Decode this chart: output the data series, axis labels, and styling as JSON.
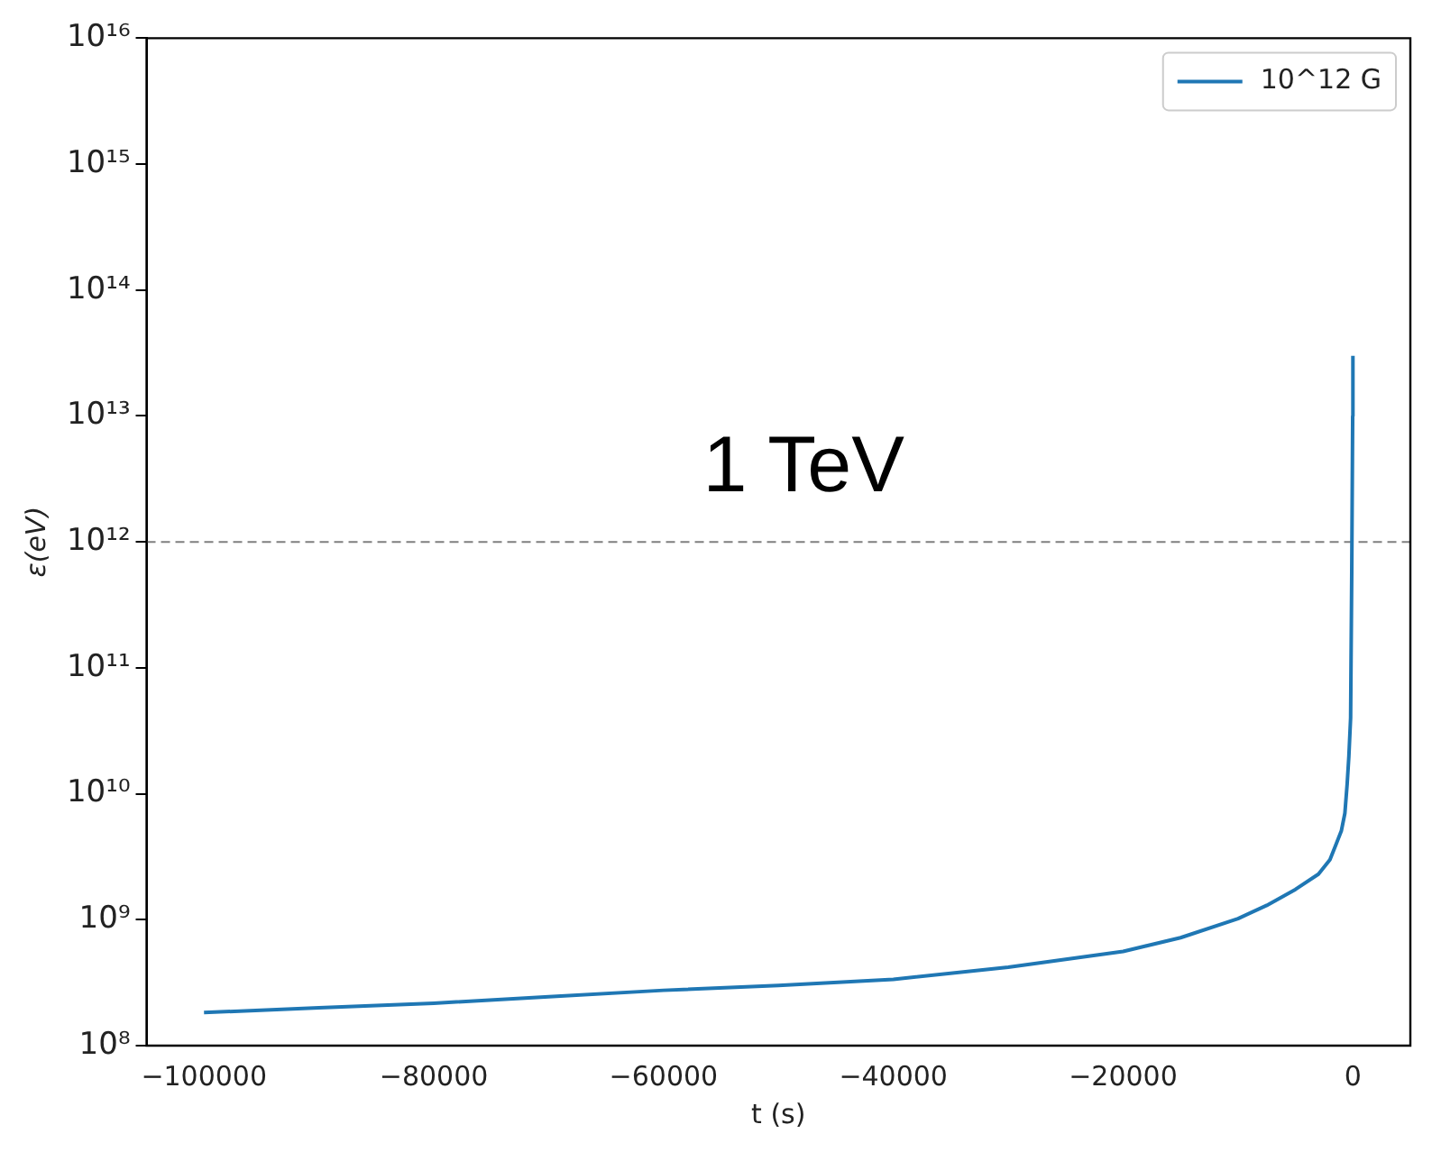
{
  "chart_data": {
    "type": "line",
    "xlabel": "t (s)",
    "ylabel": "ε(eV)",
    "x": [
      -100000,
      -90000,
      -80000,
      -70000,
      -60000,
      -50000,
      -40000,
      -30000,
      -20000,
      -15000,
      -10000,
      -7500,
      -5000,
      -3000,
      -2000,
      -1500,
      -1000,
      -700,
      -500,
      -350,
      -200,
      -100,
      -20,
      0
    ],
    "series": [
      {
        "name": "10^12 G",
        "color": "#1f77b4",
        "values": [
          183000000.0,
          200000000.0,
          217000000.0,
          245000000.0,
          275000000.0,
          300000000.0,
          336000000.0,
          420000000.0,
          560000000.0,
          720000000.0,
          1020000000.0,
          1300000000.0,
          1740000000.0,
          2300000000.0,
          3000000000.0,
          3900000000.0,
          5100000000.0,
          7000000000.0,
          12000000000.0,
          20000000000.0,
          40000000000.0,
          600000000000.0,
          10000000000000.0,
          30000000000000.0
        ]
      }
    ],
    "log": "y",
    "xlim": [
      -105000,
      5000
    ],
    "xticks": [
      -100000,
      -80000,
      -60000,
      -40000,
      -20000,
      0
    ],
    "ylim": [
      100000000.0,
      1e+16
    ],
    "yticks": [
      {
        "value": 100000000.0,
        "label": "10⁸"
      },
      {
        "value": 1000000000.0,
        "label": "10⁹"
      },
      {
        "value": 10000000000.0,
        "label": "10¹⁰"
      },
      {
        "value": 100000000000.0,
        "label": "10¹¹"
      },
      {
        "value": 1000000000000.0,
        "label": "10¹²"
      },
      {
        "value": 10000000000000.0,
        "label": "10¹³"
      },
      {
        "value": 100000000000000.0,
        "label": "10¹⁴"
      },
      {
        "value": 1000000000000000.0,
        "label": "10¹⁵"
      },
      {
        "value": 1e+16,
        "label": "10¹⁶"
      }
    ],
    "ref_lines": [
      {
        "axis": "y",
        "value": 1000000000000.0,
        "label": "1 TeV",
        "color": "#808080",
        "line_style": "dashed"
      }
    ],
    "grid": false,
    "legend": "top right",
    "marker": "none",
    "line_style": "solid"
  }
}
